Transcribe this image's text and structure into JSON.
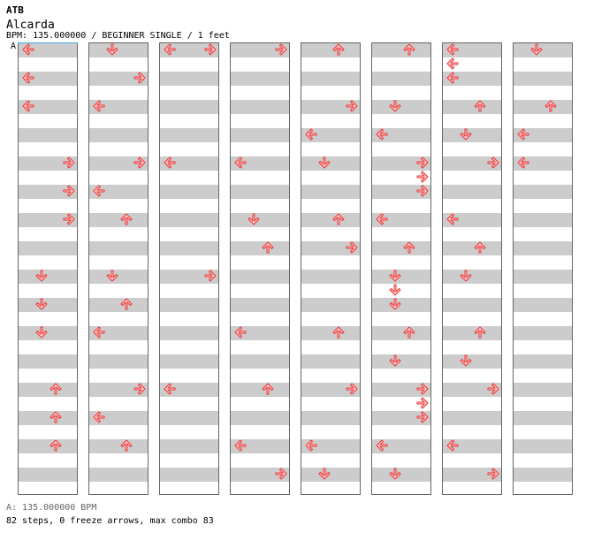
{
  "header": {
    "group": "ATB",
    "title": "Alcarda",
    "info": "BPM: 135.000000 / BEGINNER SINGLE / 1 feet"
  },
  "bpm_marker": {
    "label": "A"
  },
  "colors": {
    "arrow_fill": "#ffcccc",
    "arrow_stroke": "#ee3333",
    "stripe": "#cccccc",
    "border": "#666666",
    "bpm_line": "#44aaee"
  },
  "columns": [
    {
      "arrows": [
        {
          "beat": 0.5,
          "dir": "left"
        },
        {
          "beat": 2.5,
          "dir": "left"
        },
        {
          "beat": 4.5,
          "dir": "left"
        },
        {
          "beat": 8.5,
          "dir": "right"
        },
        {
          "beat": 10.5,
          "dir": "right"
        },
        {
          "beat": 12.5,
          "dir": "right"
        },
        {
          "beat": 16.5,
          "dir": "down"
        },
        {
          "beat": 18.5,
          "dir": "down"
        },
        {
          "beat": 20.5,
          "dir": "down"
        },
        {
          "beat": 24.5,
          "dir": "up"
        },
        {
          "beat": 26.5,
          "dir": "up"
        },
        {
          "beat": 28.5,
          "dir": "up"
        }
      ]
    },
    {
      "arrows": [
        {
          "beat": 0.5,
          "dir": "down"
        },
        {
          "beat": 2.5,
          "dir": "right"
        },
        {
          "beat": 4.5,
          "dir": "left"
        },
        {
          "beat": 8.5,
          "dir": "right"
        },
        {
          "beat": 10.5,
          "dir": "left"
        },
        {
          "beat": 12.5,
          "dir": "up"
        },
        {
          "beat": 16.5,
          "dir": "down"
        },
        {
          "beat": 18.5,
          "dir": "up"
        },
        {
          "beat": 20.5,
          "dir": "left"
        },
        {
          "beat": 24.5,
          "dir": "right"
        },
        {
          "beat": 26.5,
          "dir": "left"
        },
        {
          "beat": 28.5,
          "dir": "up"
        }
      ]
    },
    {
      "arrows": [
        {
          "beat": 0.5,
          "dir": "left"
        },
        {
          "beat": 0.5,
          "dir": "right"
        },
        {
          "beat": 8.5,
          "dir": "left"
        },
        {
          "beat": 16.5,
          "dir": "right"
        },
        {
          "beat": 24.5,
          "dir": "left"
        }
      ]
    },
    {
      "arrows": [
        {
          "beat": 0.5,
          "dir": "right"
        },
        {
          "beat": 8.5,
          "dir": "left"
        },
        {
          "beat": 12.5,
          "dir": "down"
        },
        {
          "beat": 14.5,
          "dir": "up"
        },
        {
          "beat": 20.5,
          "dir": "left"
        },
        {
          "beat": 24.5,
          "dir": "up"
        },
        {
          "beat": 28.5,
          "dir": "left"
        },
        {
          "beat": 30.5,
          "dir": "right"
        }
      ]
    },
    {
      "arrows": [
        {
          "beat": 0.5,
          "dir": "up"
        },
        {
          "beat": 4.5,
          "dir": "right"
        },
        {
          "beat": 6.5,
          "dir": "left"
        },
        {
          "beat": 8.5,
          "dir": "down"
        },
        {
          "beat": 12.5,
          "dir": "up"
        },
        {
          "beat": 14.5,
          "dir": "right"
        },
        {
          "beat": 20.5,
          "dir": "up"
        },
        {
          "beat": 24.5,
          "dir": "right"
        },
        {
          "beat": 28.5,
          "dir": "left"
        },
        {
          "beat": 30.5,
          "dir": "down"
        }
      ]
    },
    {
      "arrows": [
        {
          "beat": 0.5,
          "dir": "up"
        },
        {
          "beat": 4.5,
          "dir": "down"
        },
        {
          "beat": 6.5,
          "dir": "left"
        },
        {
          "beat": 8.5,
          "dir": "right"
        },
        {
          "beat": 9.5,
          "dir": "right"
        },
        {
          "beat": 10.5,
          "dir": "right"
        },
        {
          "beat": 12.5,
          "dir": "left"
        },
        {
          "beat": 14.5,
          "dir": "up"
        },
        {
          "beat": 16.5,
          "dir": "down"
        },
        {
          "beat": 17.5,
          "dir": "down"
        },
        {
          "beat": 18.5,
          "dir": "down"
        },
        {
          "beat": 20.5,
          "dir": "up"
        },
        {
          "beat": 22.5,
          "dir": "down"
        },
        {
          "beat": 24.5,
          "dir": "right"
        },
        {
          "beat": 25.5,
          "dir": "right"
        },
        {
          "beat": 26.5,
          "dir": "right"
        },
        {
          "beat": 28.5,
          "dir": "left"
        },
        {
          "beat": 30.5,
          "dir": "down"
        }
      ]
    },
    {
      "arrows": [
        {
          "beat": 0.5,
          "dir": "left"
        },
        {
          "beat": 1.5,
          "dir": "left"
        },
        {
          "beat": 2.5,
          "dir": "left"
        },
        {
          "beat": 4.5,
          "dir": "up"
        },
        {
          "beat": 6.5,
          "dir": "down"
        },
        {
          "beat": 8.5,
          "dir": "right"
        },
        {
          "beat": 12.5,
          "dir": "left"
        },
        {
          "beat": 14.5,
          "dir": "up"
        },
        {
          "beat": 16.5,
          "dir": "down"
        },
        {
          "beat": 20.5,
          "dir": "up"
        },
        {
          "beat": 22.5,
          "dir": "down"
        },
        {
          "beat": 24.5,
          "dir": "right"
        },
        {
          "beat": 28.5,
          "dir": "left"
        },
        {
          "beat": 30.5,
          "dir": "right"
        }
      ]
    },
    {
      "arrows": [
        {
          "beat": 0.5,
          "dir": "down"
        },
        {
          "beat": 4.5,
          "dir": "up"
        },
        {
          "beat": 6.5,
          "dir": "left"
        },
        {
          "beat": 8.5,
          "dir": "left"
        }
      ]
    }
  ],
  "footer": {
    "bpm_line": "A: 135.000000 BPM",
    "stats": "82 steps, 0 freeze arrows, max combo 83"
  }
}
